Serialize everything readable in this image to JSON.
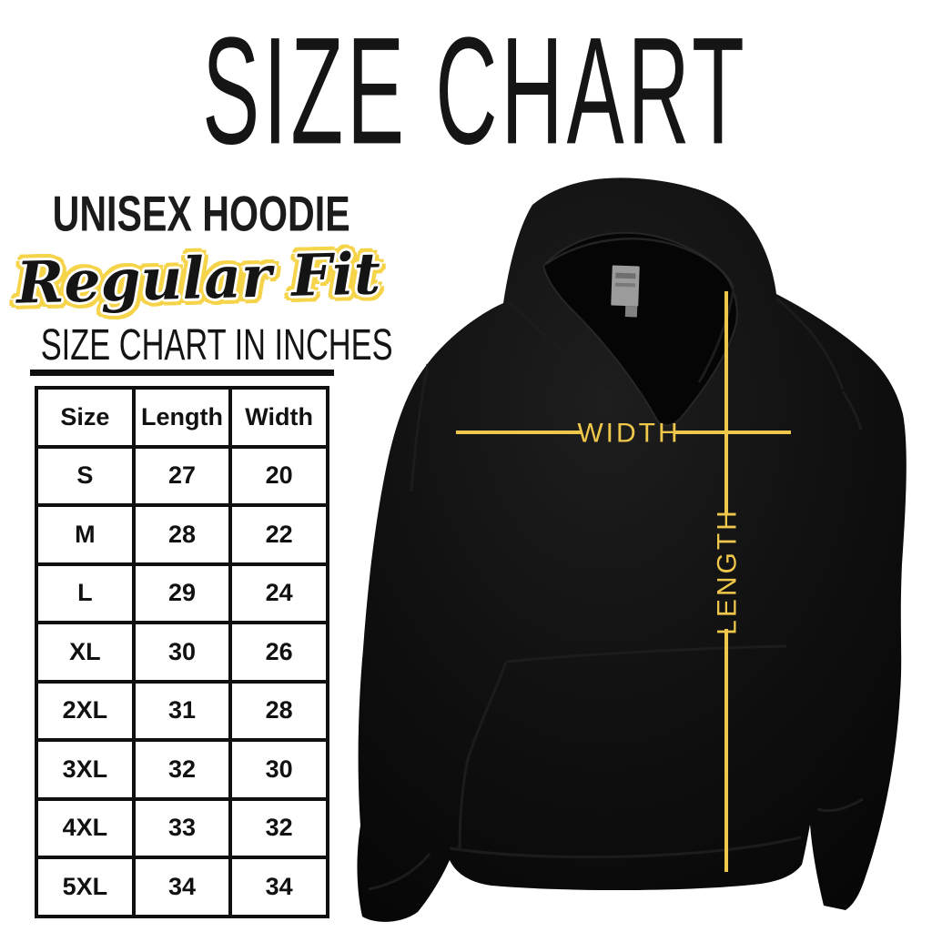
{
  "page_title": "SIZE CHART",
  "product": {
    "name": "UNISEX HOODIE",
    "fit": "Regular Fit"
  },
  "table_heading": "SIZE CHART IN INCHES",
  "chart_data": {
    "type": "table",
    "title": "SIZE CHART IN INCHES",
    "units": "inches",
    "columns": [
      "Size",
      "Length",
      "Width"
    ],
    "rows": [
      [
        "S",
        "27",
        "20"
      ],
      [
        "M",
        "28",
        "22"
      ],
      [
        "L",
        "29",
        "24"
      ],
      [
        "XL",
        "30",
        "26"
      ],
      [
        "2XL",
        "31",
        "28"
      ],
      [
        "3XL",
        "32",
        "30"
      ],
      [
        "4XL",
        "33",
        "32"
      ],
      [
        "5XL",
        "34",
        "34"
      ]
    ]
  },
  "measurements": {
    "width_label": "WIDTH",
    "length_label": "LENGTH"
  },
  "colors": {
    "measure_line_yellow": "#EFC74A",
    "script_outline_yellow": "#F6D44A",
    "text_black": "#141414",
    "garment_black": "#0B0B0B",
    "tag_gray": "#9B9B9B"
  }
}
